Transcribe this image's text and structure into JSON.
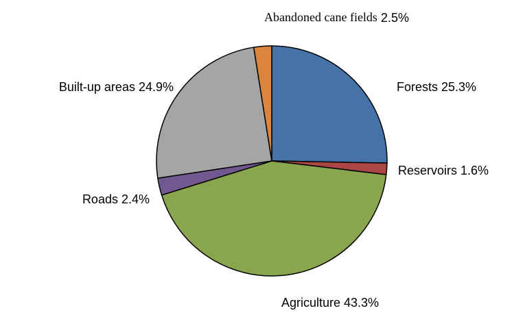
{
  "chart_data": {
    "type": "pie",
    "categories": [
      "Forests",
      "Reservoirs",
      "Agriculture",
      "Roads",
      "Built-up areas",
      "Abandoned cane fields"
    ],
    "values": [
      25.3,
      1.6,
      43.3,
      2.4,
      24.9,
      2.5
    ],
    "value_labels": [
      "25.3%",
      "1.6%",
      "43.3%",
      "2.4%",
      "24.9%",
      "2.5%"
    ],
    "colors": [
      "#4572a7",
      "#aa4643",
      "#89a54e",
      "#71588f",
      "#a5a5a5",
      "#db843d"
    ]
  }
}
